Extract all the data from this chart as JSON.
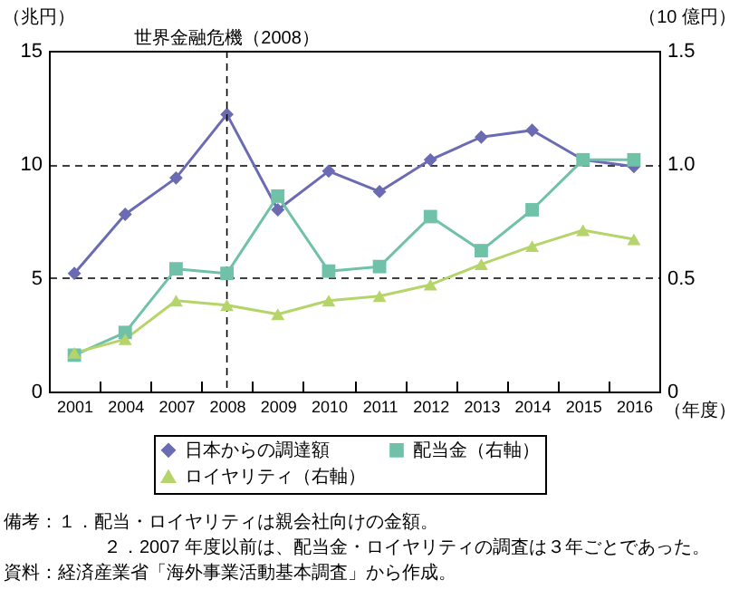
{
  "chart_data": {
    "type": "line",
    "categories": [
      "2001",
      "2004",
      "2007",
      "2008",
      "2009",
      "2010",
      "2011",
      "2012",
      "2013",
      "2014",
      "2015",
      "2016"
    ],
    "series": [
      {
        "name": "日本からの調達額",
        "color": "#6b6bb3",
        "marker": "diamond",
        "values": [
          5.2,
          7.8,
          9.4,
          12.2,
          8.0,
          9.7,
          8.8,
          10.2,
          11.2,
          11.5,
          10.2,
          9.9
        ]
      },
      {
        "name": "配当金（右軸）",
        "color": "#6fc2a8",
        "marker": "square",
        "axis": "y2",
        "values": [
          0.16,
          0.26,
          0.54,
          0.52,
          0.86,
          0.53,
          0.55,
          0.77,
          0.62,
          0.8,
          1.02,
          1.02
        ]
      },
      {
        "name": "ロイヤリティ（右軸）",
        "color": "#b5d46a",
        "marker": "triangle",
        "axis": "y2",
        "values": [
          0.17,
          0.23,
          0.4,
          0.38,
          0.34,
          0.4,
          0.42,
          0.47,
          0.56,
          0.64,
          0.71,
          0.67
        ]
      }
    ],
    "ylabel": "（兆円）",
    "y2label": "（10 億円）",
    "xlabel": "（年度）",
    "ylim": [
      0,
      15
    ],
    "yticks": [
      0,
      5,
      10,
      15
    ],
    "y2lim": [
      0,
      1.5
    ],
    "y2ticks": [
      0,
      0.5,
      {
        "value": 1,
        "label": "1.0"
      },
      1.5
    ],
    "grid": "y",
    "legend": "bottom",
    "ref_lines": [
      {
        "axis": "x",
        "value": "2008",
        "label": "世界金融危機（2008）",
        "line_style": "dashed"
      }
    ],
    "annotations": [
      "備考：１．配当・ロイヤリティは親会社向けの金額。",
      "２．2007 年度以前は、配当金・ロイヤリティの調査は３年ごとであった。",
      "資料：経済産業省「海外事業活動基本調査」から作成。"
    ]
  }
}
